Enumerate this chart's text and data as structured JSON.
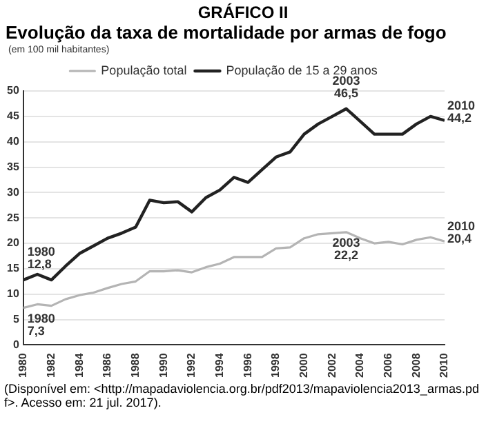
{
  "chart_data": {
    "type": "line",
    "title": "GRÁFICO II",
    "subtitle": "Evolução da taxa de mortalidade por armas de fogo",
    "ylabel": "(em 100 mil habitantes)",
    "x": [
      1980,
      1981,
      1982,
      1983,
      1984,
      1985,
      1986,
      1987,
      1988,
      1989,
      1990,
      1991,
      1992,
      1993,
      1994,
      1995,
      1996,
      1997,
      1998,
      1999,
      2000,
      2001,
      2002,
      2003,
      2004,
      2005,
      2006,
      2007,
      2008,
      2009,
      2010
    ],
    "series": [
      {
        "name": "População total",
        "color": "#b4b4b4",
        "values": [
          7.3,
          8,
          7.7,
          9,
          9.8,
          10.3,
          11.2,
          12,
          12.5,
          14.5,
          14.5,
          14.7,
          14.3,
          15.3,
          16,
          17.3,
          17.3,
          17.3,
          19,
          19.2,
          21,
          21.8,
          22,
          22.2,
          21,
          20,
          20.3,
          19.8,
          20.7,
          21.2,
          20.4
        ]
      },
      {
        "name": "População de 15 a 29 anos",
        "color": "#222222",
        "values": [
          12.8,
          13.9,
          12.8,
          15.5,
          18,
          19.5,
          21,
          22,
          23.2,
          28.5,
          28,
          28.2,
          26.2,
          29,
          30.5,
          33,
          32,
          34.5,
          37,
          38,
          41.5,
          43.5,
          45,
          46.5,
          44,
          41.5,
          41.5,
          41.5,
          43.5,
          45,
          44.2
        ]
      }
    ],
    "xlim": [
      1980,
      2010
    ],
    "xticks": [
      1980,
      1982,
      1984,
      1986,
      1988,
      1990,
      1992,
      1994,
      1996,
      1998,
      2000,
      2002,
      2004,
      2006,
      2008,
      2010
    ],
    "ylim": [
      0,
      50
    ],
    "yticks": [
      0,
      5,
      10,
      15,
      20,
      25,
      30,
      35,
      40,
      45,
      50
    ],
    "grid": "y",
    "legend": "top",
    "marker": "none",
    "line_style": "solid",
    "annotations": [
      {
        "text": "1980\n12,8",
        "x": 1980,
        "y": 12.8
      },
      {
        "text": "1980\n7,3",
        "x": 1980,
        "y": 7.3
      },
      {
        "text": "2003\n46,5",
        "x": 2003,
        "y": 46.5
      },
      {
        "text": "2003\n22,2",
        "x": 2003,
        "y": 22.2
      },
      {
        "text": "2010\n44,2",
        "x": 2010,
        "y": 44.2
      },
      {
        "text": "2010\n20,4",
        "x": 2010,
        "y": 20.4
      },
      "(Disponível em: <http://mapadaviolencia.org.br/pdf2013/mapaviolencia2013_armas.pdf>. Acesso em: 21 jul. 2017)."
    ]
  }
}
